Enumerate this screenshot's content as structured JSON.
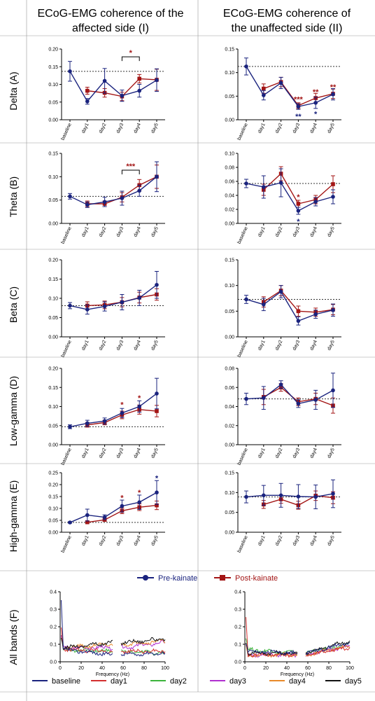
{
  "headers": {
    "col1": [
      "ECoG-EMG coherence of the",
      "affected side (I)"
    ],
    "col2": [
      "ECoG-EMG coherence of",
      "the unaffected side (II)"
    ]
  },
  "row_labels": [
    "Delta (A)",
    "Theta (B)",
    "Beta (C)",
    "Low-gamma (D)",
    "High-gamma (E)",
    "All bands (F)"
  ],
  "legend_main": {
    "pre": "Pre-kainate",
    "post": "Post-kainate"
  },
  "legend_bottom": [
    "baseline",
    "day1",
    "day2",
    "day3",
    "day4",
    "day5"
  ],
  "colors": {
    "pre": "#1a237e",
    "post": "#a31515",
    "baseline": "#1a237e",
    "day1": "#d32f2f",
    "day2": "#3cb43c",
    "day3": "#b030d0",
    "day4": "#e88a2a",
    "day5": "#111111"
  },
  "chart_data": {
    "categories": [
      "baseline",
      "day1",
      "day2",
      "day3",
      "day4",
      "day5"
    ],
    "panels": [
      {
        "id": "A-I",
        "type": "line",
        "ylim": [
          0,
          0.2
        ],
        "yticks": [
          "0.00",
          "0.05",
          "0.10",
          "0.15",
          "0.20"
        ],
        "ref": 0.137,
        "pre": {
          "values": [
            0.137,
            0.052,
            0.11,
            0.068,
            0.082,
            0.112
          ],
          "err": [
            0.028,
            0.008,
            0.035,
            0.016,
            0.018,
            0.032
          ]
        },
        "post": {
          "values": [
            null,
            0.082,
            0.076,
            0.066,
            0.116,
            0.113
          ],
          "err": [
            null,
            0.01,
            0.012,
            0.012,
            0.012,
            0.03
          ]
        },
        "sig": [
          {
            "text": "*",
            "color": "post",
            "bracket": [
              3,
              4
            ],
            "y": 0.178
          }
        ]
      },
      {
        "id": "A-II",
        "type": "line",
        "ylim": [
          0,
          0.15
        ],
        "yticks": [
          "0.00",
          "0.05",
          "0.10",
          "0.15"
        ],
        "ref": 0.113,
        "pre": {
          "values": [
            0.113,
            0.052,
            0.078,
            0.028,
            0.036,
            0.054
          ],
          "err": [
            0.018,
            0.01,
            0.012,
            0.006,
            0.012,
            0.012
          ]
        },
        "post": {
          "values": [
            null,
            0.066,
            0.08,
            0.03,
            0.046,
            0.055
          ],
          "err": [
            null,
            0.01,
            0.01,
            0.006,
            0.01,
            0.01
          ]
        },
        "sig": [
          {
            "text": "***",
            "color": "post",
            "x": 3,
            "y": 0.042
          },
          {
            "text": "**",
            "color": "pre",
            "x": 3,
            "y": 0.006
          },
          {
            "text": "**",
            "color": "post",
            "x": 4,
            "y": 0.058
          },
          {
            "text": "*",
            "color": "pre",
            "x": 4,
            "y": 0.011
          },
          {
            "text": "**",
            "color": "post",
            "x": 5,
            "y": 0.068
          }
        ]
      },
      {
        "id": "B-I",
        "type": "line",
        "ylim": [
          0,
          0.15
        ],
        "yticks": [
          "0.00",
          "0.05",
          "0.10",
          "0.15"
        ],
        "ref": 0.058,
        "pre": {
          "values": [
            0.058,
            0.04,
            0.046,
            0.054,
            0.07,
            0.1
          ],
          "err": [
            0.006,
            0.006,
            0.01,
            0.015,
            0.012,
            0.032
          ]
        },
        "post": {
          "values": [
            null,
            0.042,
            0.042,
            0.056,
            0.082,
            0.1
          ],
          "err": [
            null,
            0.006,
            0.006,
            0.01,
            0.012,
            0.025
          ]
        },
        "sig": [
          {
            "text": "***",
            "color": "post",
            "bracket": [
              3,
              4
            ],
            "y": 0.114
          }
        ]
      },
      {
        "id": "B-II",
        "type": "line",
        "ylim": [
          0,
          0.1
        ],
        "yticks": [
          "0.00",
          "0.02",
          "0.04",
          "0.06",
          "0.08",
          "0.10"
        ],
        "ref": 0.057,
        "pre": {
          "values": [
            0.057,
            0.052,
            0.058,
            0.018,
            0.031,
            0.038
          ],
          "err": [
            0.006,
            0.016,
            0.02,
            0.005,
            0.006,
            0.01
          ]
        },
        "post": {
          "values": [
            null,
            0.048,
            0.071,
            0.028,
            0.034,
            0.056
          ],
          "err": [
            null,
            0.008,
            0.01,
            0.005,
            0.006,
            0.012
          ]
        },
        "sig": [
          {
            "text": "*",
            "color": "post",
            "x": 3,
            "y": 0.037
          },
          {
            "text": "*",
            "color": "pre",
            "x": 3,
            "y": 0.002
          }
        ]
      },
      {
        "id": "C-I",
        "type": "line",
        "ylim": [
          0,
          0.2
        ],
        "yticks": [
          "0.00",
          "0.05",
          "0.10",
          "0.15",
          "0.20"
        ],
        "ref": 0.081,
        "pre": {
          "values": [
            0.081,
            0.071,
            0.079,
            0.09,
            0.101,
            0.135
          ],
          "err": [
            0.008,
            0.012,
            0.012,
            0.02,
            0.02,
            0.035
          ]
        },
        "post": {
          "values": [
            null,
            0.081,
            0.083,
            0.09,
            0.102,
            0.11
          ],
          "err": [
            null,
            0.01,
            0.01,
            0.012,
            0.014,
            0.015
          ]
        },
        "sig": []
      },
      {
        "id": "C-II",
        "type": "line",
        "ylim": [
          0,
          0.15
        ],
        "yticks": [
          "0.00",
          "0.05",
          "0.10",
          "0.15"
        ],
        "ref": 0.073,
        "pre": {
          "values": [
            0.073,
            0.063,
            0.088,
            0.031,
            0.044,
            0.052
          ],
          "err": [
            0.008,
            0.012,
            0.012,
            0.008,
            0.008,
            0.012
          ]
        },
        "post": {
          "values": [
            null,
            0.068,
            0.09,
            0.05,
            0.048,
            0.053
          ],
          "err": [
            null,
            0.01,
            0.01,
            0.01,
            0.008,
            0.01
          ]
        },
        "sig": []
      },
      {
        "id": "D-I",
        "type": "line",
        "ylim": [
          0,
          0.2
        ],
        "yticks": [
          "0.00",
          "0.05",
          "0.10",
          "0.15",
          "0.20"
        ],
        "ref": 0.047,
        "pre": {
          "values": [
            0.047,
            0.056,
            0.062,
            0.083,
            0.1,
            0.134
          ],
          "err": [
            0.005,
            0.008,
            0.008,
            0.012,
            0.015,
            0.04
          ]
        },
        "post": {
          "values": [
            null,
            0.052,
            0.058,
            0.078,
            0.092,
            0.088
          ],
          "err": [
            null,
            0.006,
            0.006,
            0.01,
            0.012,
            0.015
          ]
        },
        "sig": [
          {
            "text": "*",
            "color": "post",
            "x": 3,
            "y": 0.104
          },
          {
            "text": "*",
            "color": "post",
            "x": 4,
            "y": 0.121
          }
        ]
      },
      {
        "id": "D-II",
        "type": "line",
        "ylim": [
          0,
          0.08
        ],
        "yticks": [
          "0.00",
          "0.02",
          "0.04",
          "0.06",
          "0.08"
        ],
        "ref": 0.048,
        "pre": {
          "values": [
            0.048,
            0.049,
            0.063,
            0.043,
            0.047,
            0.057
          ],
          "err": [
            0.006,
            0.012,
            0.004,
            0.004,
            0.01,
            0.018
          ]
        },
        "post": {
          "values": [
            null,
            0.05,
            0.06,
            0.045,
            0.048,
            0.041
          ],
          "err": [
            null,
            0.008,
            0.004,
            0.004,
            0.006,
            0.008
          ]
        },
        "sig": []
      },
      {
        "id": "E-I",
        "type": "line",
        "ylim": [
          0,
          0.25
        ],
        "yticks": [
          "0.00",
          "0.05",
          "0.10",
          "0.15",
          "0.20",
          "0.25"
        ],
        "ref": 0.041,
        "pre": {
          "values": [
            0.041,
            0.072,
            0.063,
            0.11,
            0.126,
            0.167
          ],
          "err": [
            0.003,
            0.025,
            0.01,
            0.025,
            0.03,
            0.05
          ]
        },
        "post": {
          "values": [
            null,
            0.042,
            0.052,
            0.09,
            0.105,
            0.113
          ],
          "err": [
            null,
            0.004,
            0.006,
            0.012,
            0.014,
            0.018
          ]
        },
        "sig": [
          {
            "text": "*",
            "color": "post",
            "x": 3,
            "y": 0.143
          },
          {
            "text": "*",
            "color": "post",
            "x": 4,
            "y": 0.165
          },
          {
            "text": "*",
            "color": "pre",
            "x": 5,
            "y": 0.225
          }
        ]
      },
      {
        "id": "E-II",
        "type": "line",
        "ylim": [
          0,
          0.15
        ],
        "yticks": [
          "0.00",
          "0.05",
          "0.10",
          "0.15"
        ],
        "ref": 0.089,
        "pre": {
          "values": [
            0.089,
            0.093,
            0.093,
            0.09,
            0.089,
            0.097
          ],
          "err": [
            0.015,
            0.025,
            0.03,
            0.03,
            0.03,
            0.035
          ]
        },
        "post": {
          "values": [
            null,
            0.07,
            0.083,
            0.068,
            0.092,
            0.087
          ],
          "err": [
            null,
            0.01,
            0.01,
            0.01,
            0.012,
            0.015
          ]
        },
        "sig": []
      }
    ],
    "spectra": {
      "type": "line",
      "xlabel": "Frequency (Hz)",
      "xlim": [
        0,
        100
      ],
      "ylim": [
        0,
        0.4
      ],
      "xticks": [
        "0",
        "20",
        "40",
        "60",
        "80",
        "100"
      ],
      "yticks": [
        "0.0",
        "0.1",
        "0.2",
        "0.3",
        "0.4"
      ],
      "gap": [
        50,
        58
      ],
      "I": {
        "baseline": {
          "peak": 0.35,
          "start": 0.07,
          "mid": 0.04,
          "end": 0.05
        },
        "day1": {
          "peak": 0.2,
          "start": 0.07,
          "mid": 0.06,
          "end": 0.06
        },
        "day2": {
          "peak": 0.15,
          "start": 0.07,
          "mid": 0.06,
          "end": 0.05
        },
        "day3": {
          "peak": 0.14,
          "start": 0.08,
          "mid": 0.08,
          "end": 0.11
        },
        "day4": {
          "peak": 0.14,
          "start": 0.08,
          "mid": 0.1,
          "end": 0.12
        },
        "day5": {
          "peak": 0.14,
          "start": 0.08,
          "mid": 0.11,
          "end": 0.13
        }
      },
      "II": {
        "baseline": {
          "peak": 0.11,
          "start": 0.06,
          "mid": 0.05,
          "end": 0.11
        },
        "day1": {
          "peak": 0.25,
          "start": 0.04,
          "mid": 0.04,
          "end": 0.08
        },
        "day2": {
          "peak": 0.14,
          "start": 0.07,
          "mid": 0.05,
          "end": 0.1
        },
        "day3": {
          "peak": 0.1,
          "start": 0.04,
          "mid": 0.04,
          "end": 0.09
        },
        "day4": {
          "peak": 0.1,
          "start": 0.04,
          "mid": 0.04,
          "end": 0.09
        },
        "day5": {
          "peak": 0.12,
          "start": 0.05,
          "mid": 0.05,
          "end": 0.12
        }
      }
    }
  }
}
